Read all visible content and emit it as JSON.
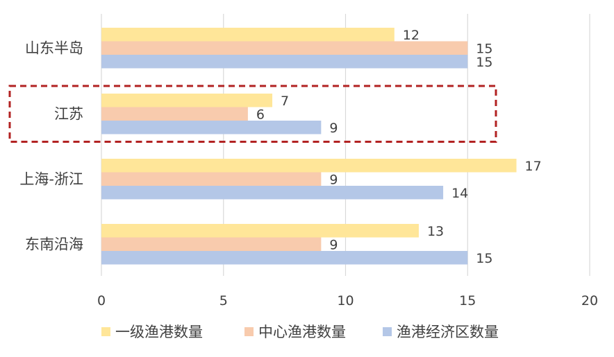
{
  "chart_data": {
    "type": "bar",
    "orientation": "horizontal",
    "categories": [
      "山东半岛",
      "江苏",
      "上海-浙江",
      "东南沿海"
    ],
    "series": [
      {
        "name": "一级渔港数量",
        "color": "#ffe699",
        "values": [
          12,
          7,
          17,
          13
        ]
      },
      {
        "name": "中心渔港数量",
        "color": "#f8cbad",
        "values": [
          15,
          6,
          9,
          9
        ]
      },
      {
        "name": "渔港经济区数量",
        "color": "#b4c7e7",
        "values": [
          15,
          9,
          14,
          15
        ]
      }
    ],
    "xlim": [
      0,
      20
    ],
    "xticks": [
      "0",
      "5",
      "10",
      "15",
      "20"
    ],
    "grid": true,
    "legend": "bottom",
    "highlight": {
      "category": "江苏",
      "style": "dashed",
      "color": "#b22222"
    },
    "title": "",
    "xlabel": "",
    "ylabel": ""
  }
}
